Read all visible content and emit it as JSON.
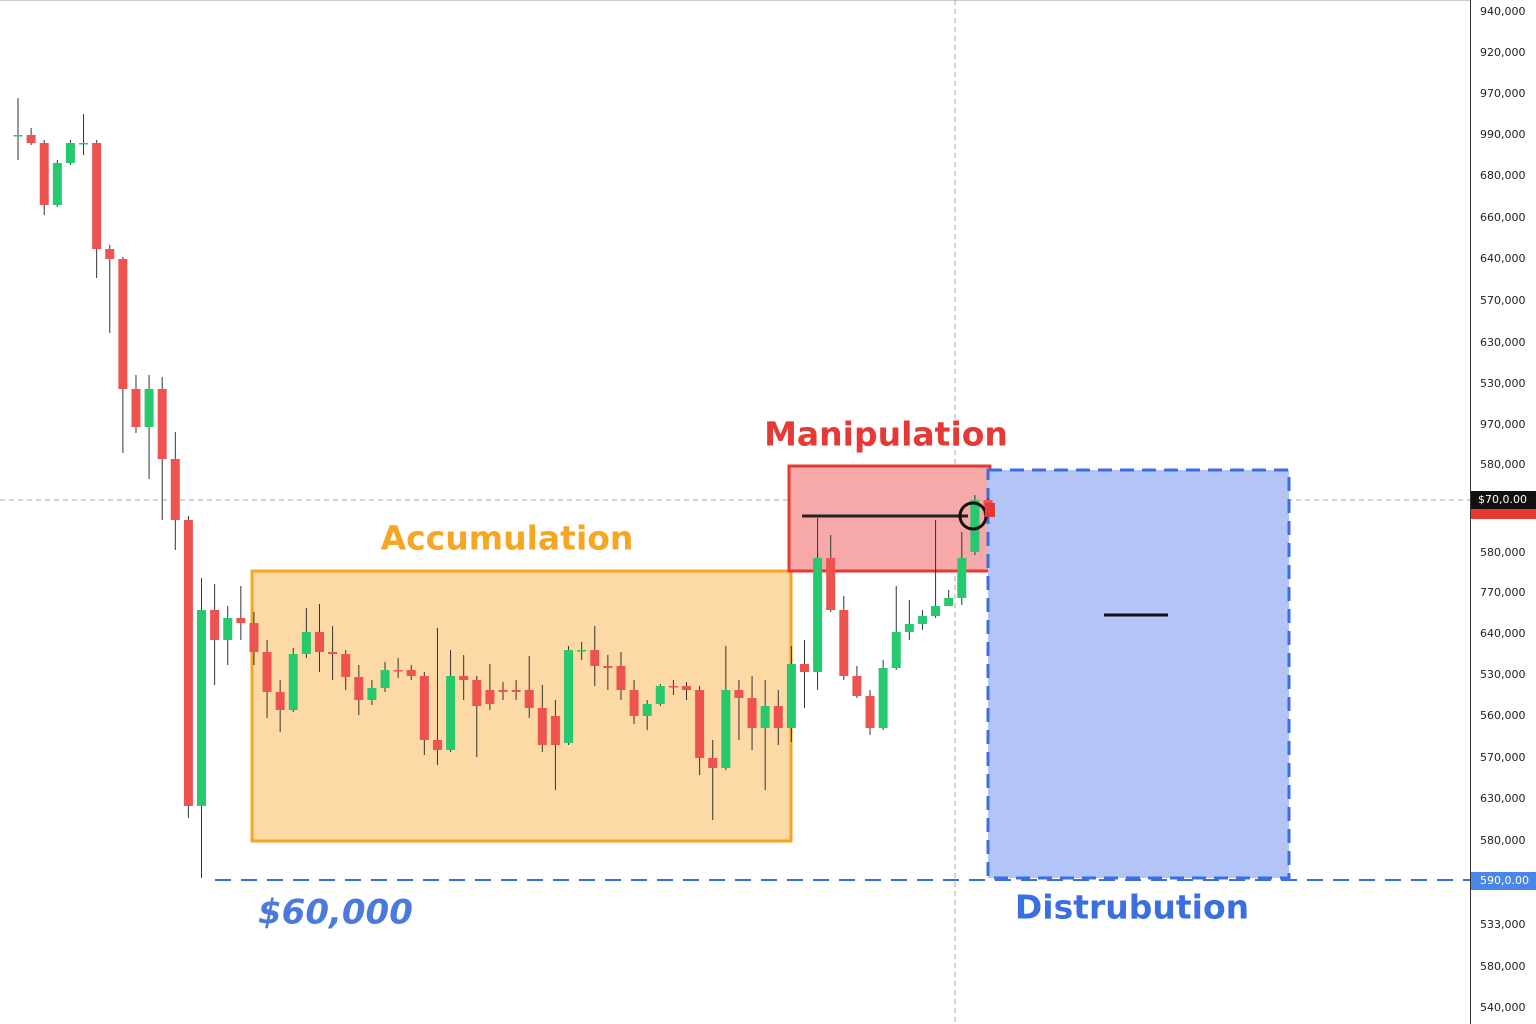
{
  "chart_data": {
    "type": "candlestick",
    "ylim": [
      45600,
      148000
    ],
    "up_color": "#27c96e",
    "down_color": "#ef5350",
    "open": [
      134500,
      134500,
      133700,
      127500,
      131700,
      133700,
      133700,
      123100,
      122100,
      109100,
      105300,
      109100,
      102100,
      96000,
      67400,
      87000,
      84000,
      86200,
      85700,
      82800,
      78800,
      77000,
      82600,
      84800,
      82800,
      82600,
      80300,
      78000,
      79200,
      81000,
      81000,
      80400,
      74000,
      73000,
      80400,
      80000,
      79000,
      79000,
      79000,
      79000,
      77200,
      76400,
      73700,
      83000,
      83000,
      81400,
      81400,
      79000,
      76400,
      77600,
      79400,
      79400,
      79000,
      72200,
      71200,
      79000,
      78200,
      75200,
      77400,
      75200,
      81600,
      80800,
      92200,
      87000,
      80400,
      78400,
      75200,
      81200,
      84800,
      85600,
      86400,
      87400,
      88200,
      92800,
      98000
    ],
    "high": [
      138200,
      135200,
      134000,
      132000,
      134000,
      136600,
      134000,
      123500,
      122300,
      110500,
      110500,
      110300,
      104800,
      96400,
      90200,
      89600,
      87400,
      89400,
      86800,
      84000,
      80000,
      83200,
      87200,
      87600,
      85400,
      83000,
      81500,
      80000,
      81800,
      82200,
      81500,
      80800,
      85200,
      83000,
      82500,
      80400,
      81600,
      79800,
      80000,
      82400,
      79500,
      78000,
      83400,
      83800,
      85400,
      82500,
      82800,
      80000,
      78000,
      79600,
      80000,
      79800,
      79400,
      74000,
      83400,
      80000,
      80400,
      80000,
      79000,
      83400,
      84000,
      96200,
      94500,
      88400,
      81400,
      79000,
      82000,
      89400,
      88000,
      87000,
      96000,
      89000,
      94800,
      98500,
      98200
    ],
    "low": [
      132000,
      133500,
      126500,
      127300,
      131500,
      132500,
      120200,
      114700,
      102700,
      104700,
      100100,
      96000,
      93000,
      66200,
      60200,
      79500,
      81500,
      84000,
      81500,
      76200,
      74800,
      76800,
      82200,
      80800,
      80000,
      79000,
      76500,
      77500,
      78800,
      80200,
      80000,
      72500,
      71500,
      72800,
      78000,
      72300,
      77000,
      78000,
      78000,
      76200,
      72800,
      69000,
      73500,
      82000,
      79400,
      79000,
      78000,
      75600,
      75000,
      77400,
      78500,
      78000,
      70500,
      66000,
      71000,
      74000,
      73000,
      69000,
      73500,
      73800,
      77200,
      79000,
      86800,
      80000,
      78200,
      74500,
      75000,
      81000,
      84000,
      85000,
      86200,
      87400,
      87500,
      92500,
      96200
    ],
    "close": [
      134500,
      133700,
      127500,
      131700,
      133700,
      133700,
      123100,
      122100,
      109100,
      105300,
      109100,
      102100,
      96000,
      67400,
      87000,
      84000,
      86200,
      85700,
      82800,
      78800,
      77000,
      82600,
      84800,
      82800,
      82600,
      80300,
      78000,
      79200,
      81000,
      80900,
      80400,
      74000,
      73000,
      80400,
      80000,
      77400,
      77600,
      78800,
      78800,
      77200,
      73500,
      73500,
      83000,
      83000,
      81400,
      81200,
      79000,
      76400,
      77600,
      79400,
      79300,
      79000,
      72200,
      71200,
      79000,
      78200,
      75200,
      77400,
      75200,
      81600,
      80800,
      92200,
      87000,
      80400,
      78400,
      75200,
      81200,
      84800,
      85600,
      86400,
      87400,
      88200,
      92200,
      98000,
      96500
    ],
    "zones": [
      {
        "label": "Accumulation",
        "top": 90900,
        "bottom": 63900,
        "color": "#f5a623",
        "fill": "#fdd9a5"
      },
      {
        "label": "Manipulation",
        "top": 101400,
        "bottom": 90900,
        "color": "#e53935",
        "fill": "#f7a9a9"
      },
      {
        "label": "Distrubution",
        "top": 101000,
        "bottom": 60200,
        "color": "#3b6fe0",
        "fill": "#b3c4f7"
      }
    ],
    "support": {
      "label": "$60,000",
      "value": 60000,
      "tag": "590,0.00"
    },
    "price_tag": "$70,0.00",
    "axis_labels": [
      "940,000",
      "920,000",
      "970,000",
      "990,000",
      "680,000",
      "660,000",
      "640,000",
      "570,000",
      "630,000",
      "530,000",
      "970,000",
      "580,000",
      "580,000",
      "770,000",
      "640,000",
      "530,000",
      "560,000",
      "570,000",
      "630,000",
      "580,000",
      "533,000",
      "580,000",
      "540,000"
    ]
  }
}
